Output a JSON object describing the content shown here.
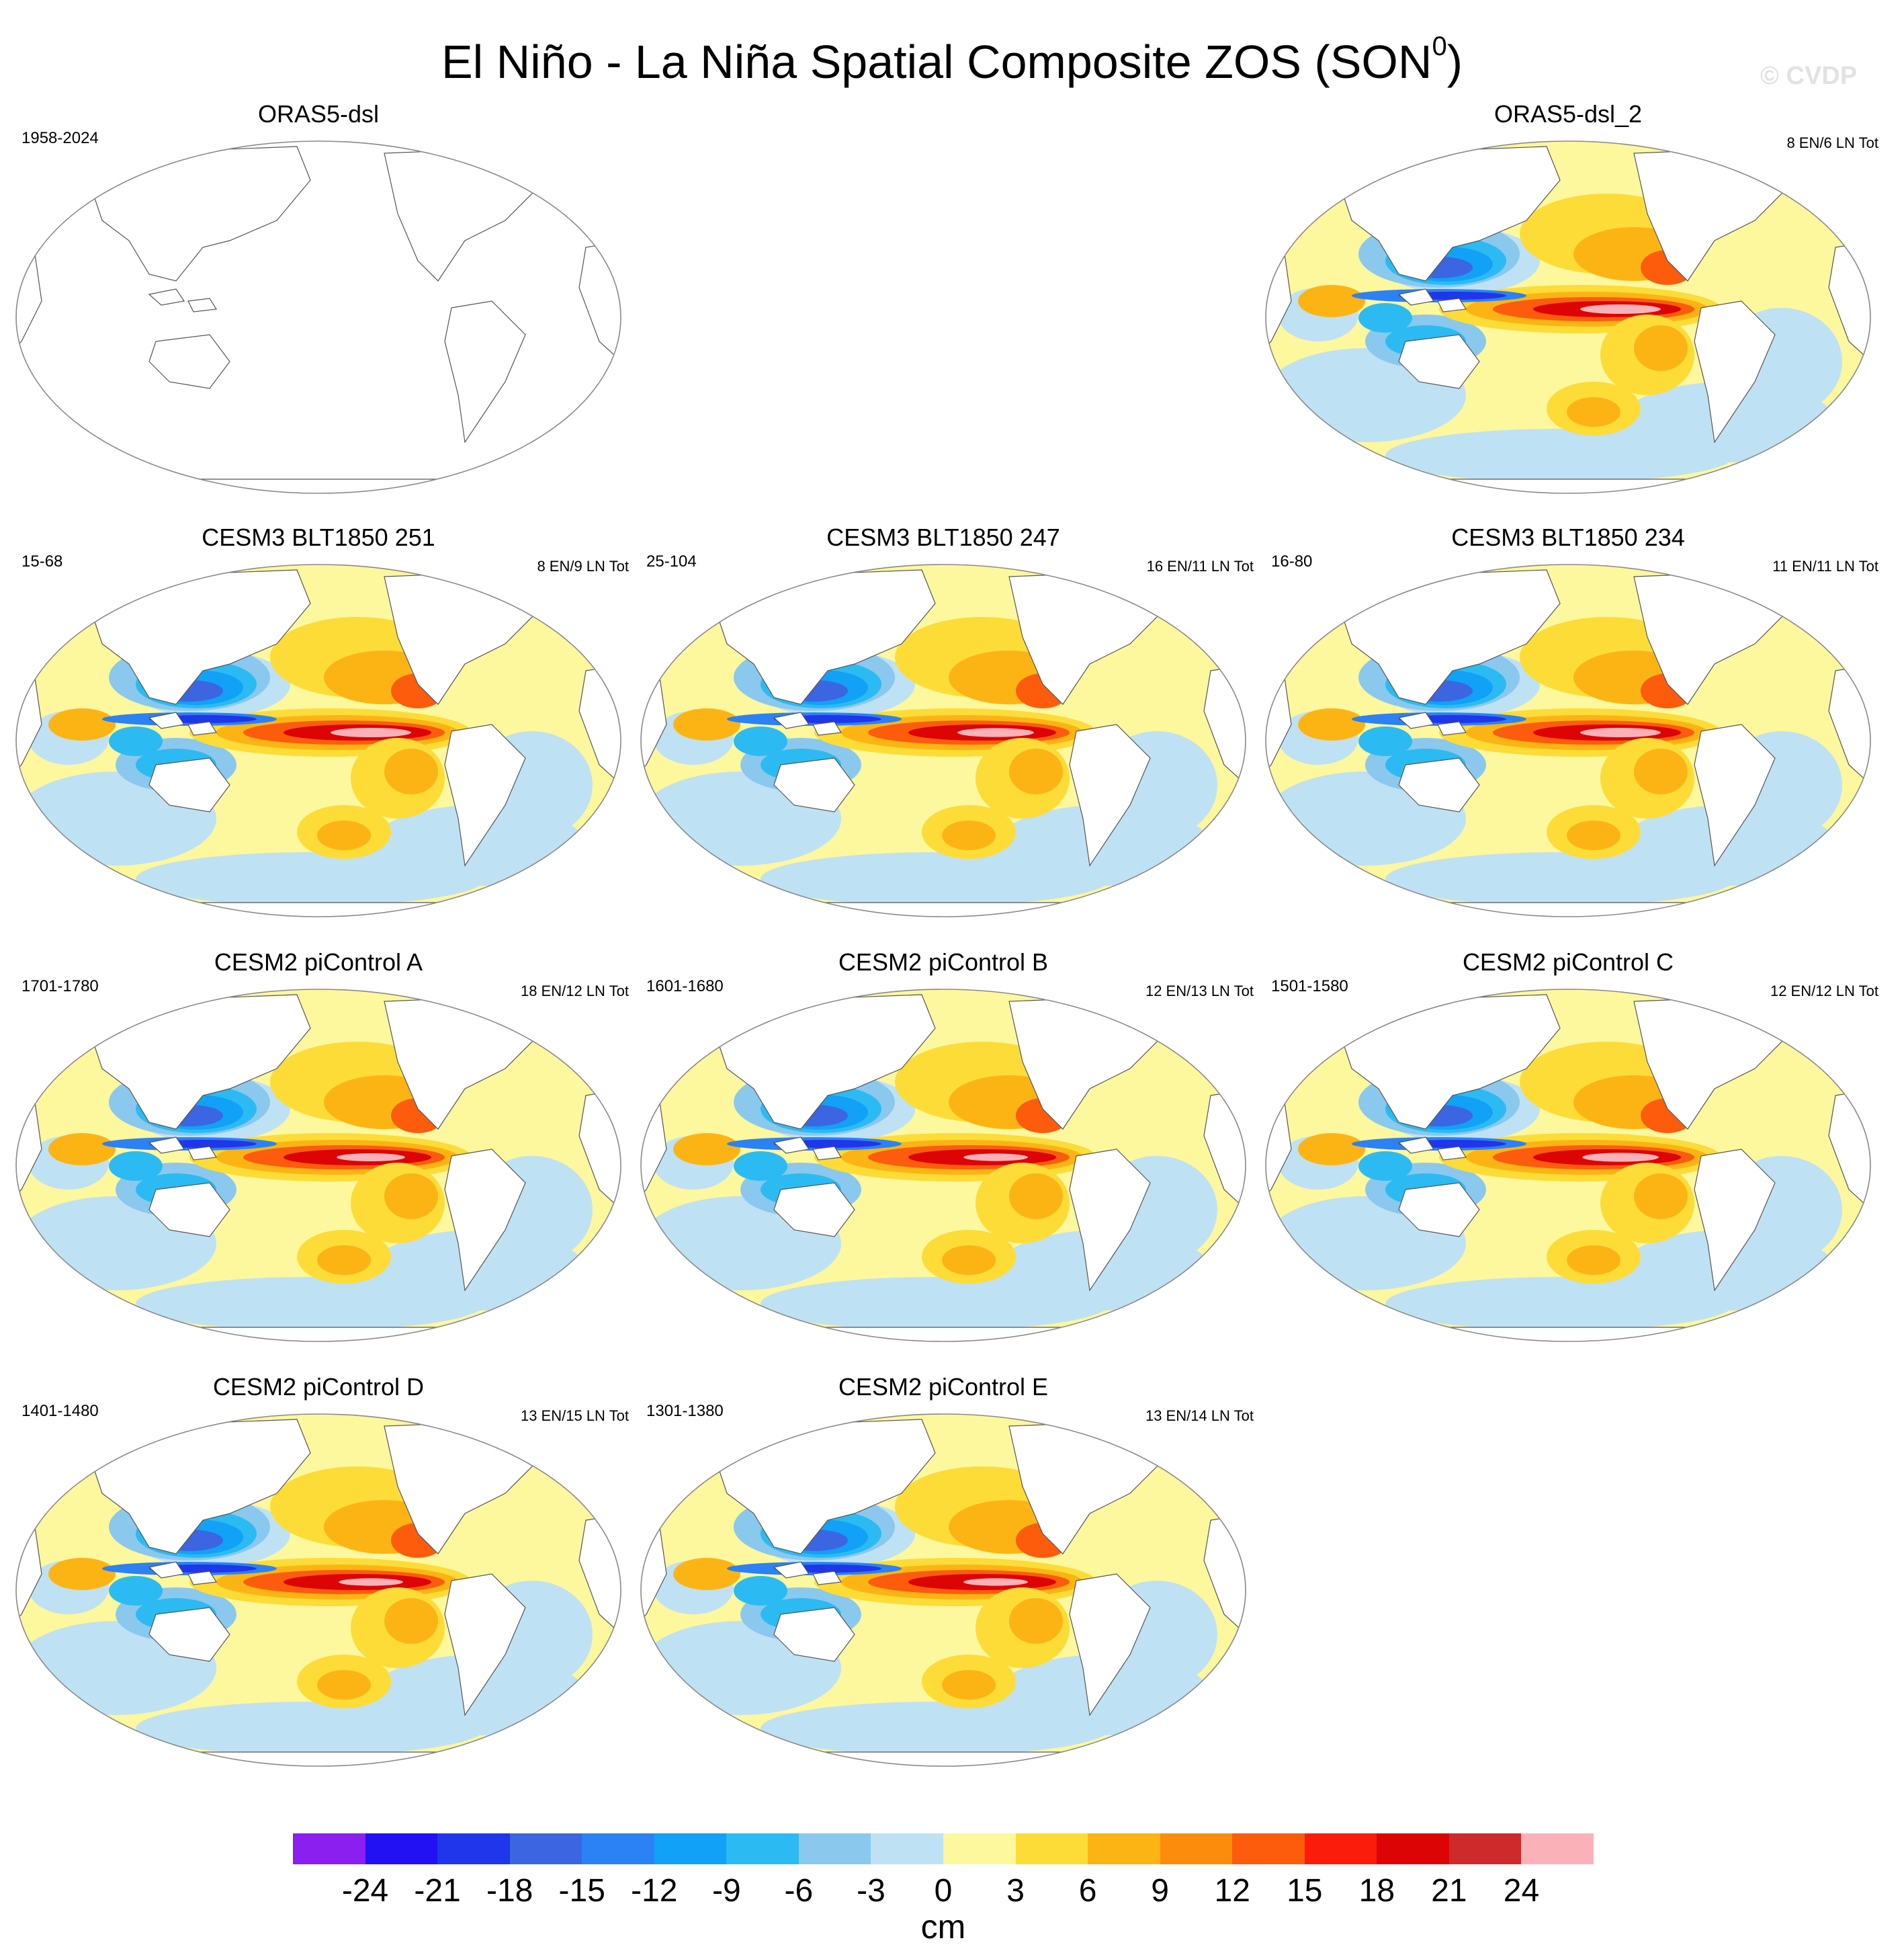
{
  "figure": {
    "title_main": "El Niño - La Niña Spatial Composite ZOS (SON",
    "title_sup": "0",
    "title_end": ")",
    "watermark": "© CVDP"
  },
  "panels": [
    {
      "title": "ORAS5-dsl",
      "period": "1958-2024",
      "events": "",
      "has_data": false,
      "strength": 0
    },
    {
      "title": "ORAS5-dsl_2",
      "period": "",
      "events": "8 EN/6 LN Tot",
      "has_data": true,
      "strength": 1.0
    },
    {
      "title": "CESM3 BLT1850 251",
      "period": "15-68",
      "events": "8 EN/9 LN Tot",
      "has_data": true,
      "strength": 1.0
    },
    {
      "title": "CESM3 BLT1850 247",
      "period": "25-104",
      "events": "16 EN/11 LN Tot",
      "has_data": true,
      "strength": 0.95
    },
    {
      "title": "CESM3 BLT1850 234",
      "period": "16-80",
      "events": "11 EN/11 LN Tot",
      "has_data": true,
      "strength": 1.0
    },
    {
      "title": "CESM2 piControl A",
      "period": "1701-1780",
      "events": "18 EN/12 LN Tot",
      "has_data": true,
      "strength": 0.85
    },
    {
      "title": "CESM2 piControl B",
      "period": "1601-1680",
      "events": "12 EN/13 LN Tot",
      "has_data": true,
      "strength": 0.8
    },
    {
      "title": "CESM2 piControl C",
      "period": "1501-1580",
      "events": "12 EN/12 LN Tot",
      "has_data": true,
      "strength": 0.95
    },
    {
      "title": "CESM2 piControl D",
      "period": "1401-1480",
      "events": "13 EN/15 LN Tot",
      "has_data": true,
      "strength": 0.8
    },
    {
      "title": "CESM2 piControl E",
      "period": "1301-1380",
      "events": "13 EN/14 LN Tot",
      "has_data": true,
      "strength": 0.8
    }
  ],
  "colorbar": {
    "unit": "cm",
    "colors": [
      "#8a1ff0",
      "#2211f2",
      "#1f36ea",
      "#3c65e2",
      "#2a82f5",
      "#11a1f6",
      "#2bbbf2",
      "#8ac8ee",
      "#bfe1f4",
      "#fdf79e",
      "#fddc38",
      "#fcb414",
      "#fc8c0c",
      "#fc5c0c",
      "#fb1c0c",
      "#dc0404",
      "#ce2a2c",
      "#fab2b8"
    ],
    "labels": [
      "-24",
      "-21",
      "-18",
      "-15",
      "-12",
      "-9",
      "-6",
      "-3",
      "0",
      "3",
      "6",
      "9",
      "12",
      "15",
      "18",
      "21",
      "24"
    ]
  }
}
